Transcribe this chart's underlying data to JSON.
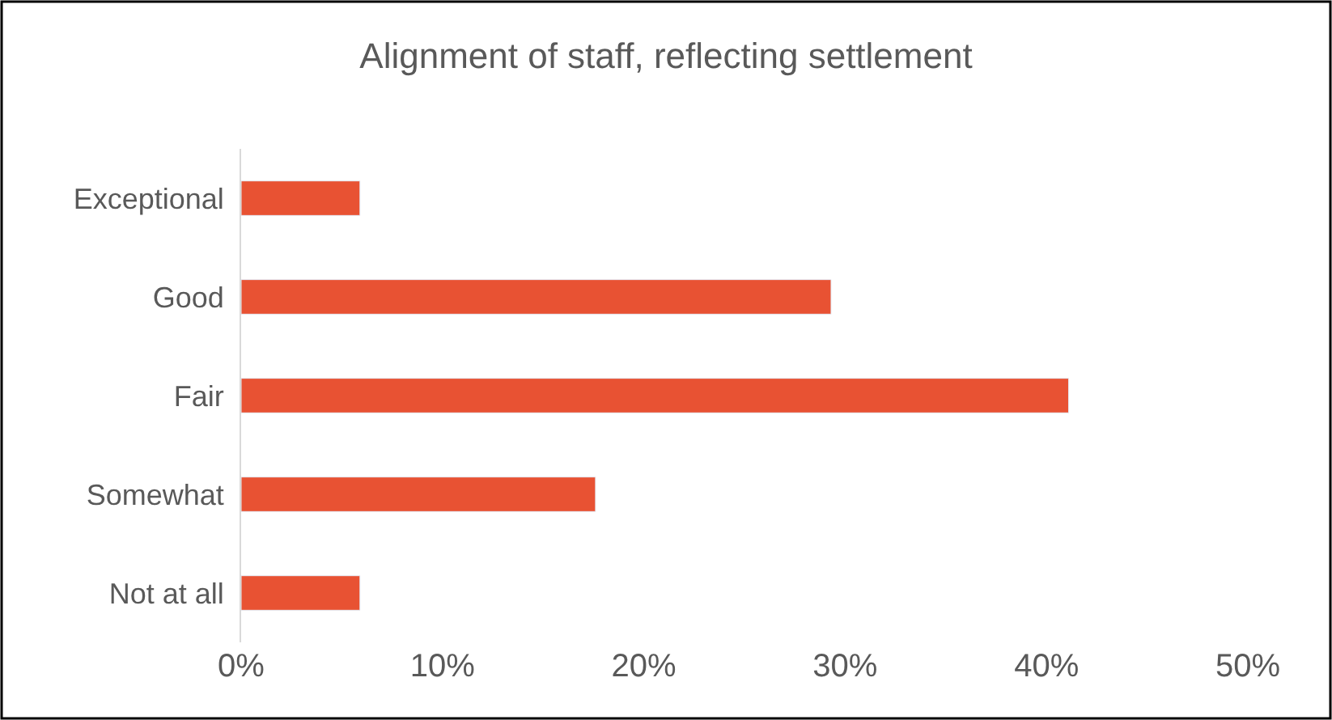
{
  "chart_data": {
    "type": "bar",
    "orientation": "horizontal",
    "title": "Alignment of staff, reflecting settlement",
    "categories": [
      "Exceptional",
      "Good",
      "Fair",
      "Somewhat",
      "Not at all"
    ],
    "values": [
      5.9,
      29.3,
      41.1,
      17.6,
      5.9
    ],
    "color": "#e85233",
    "xlim": [
      0,
      50
    ],
    "xticks": [
      {
        "value": 0,
        "label": "0%"
      },
      {
        "value": 10,
        "label": "10%"
      },
      {
        "value": 20,
        "label": "20%"
      },
      {
        "value": 30,
        "label": "30%"
      },
      {
        "value": 40,
        "label": "40%"
      },
      {
        "value": 50,
        "label": "50%"
      }
    ],
    "legend": false
  }
}
